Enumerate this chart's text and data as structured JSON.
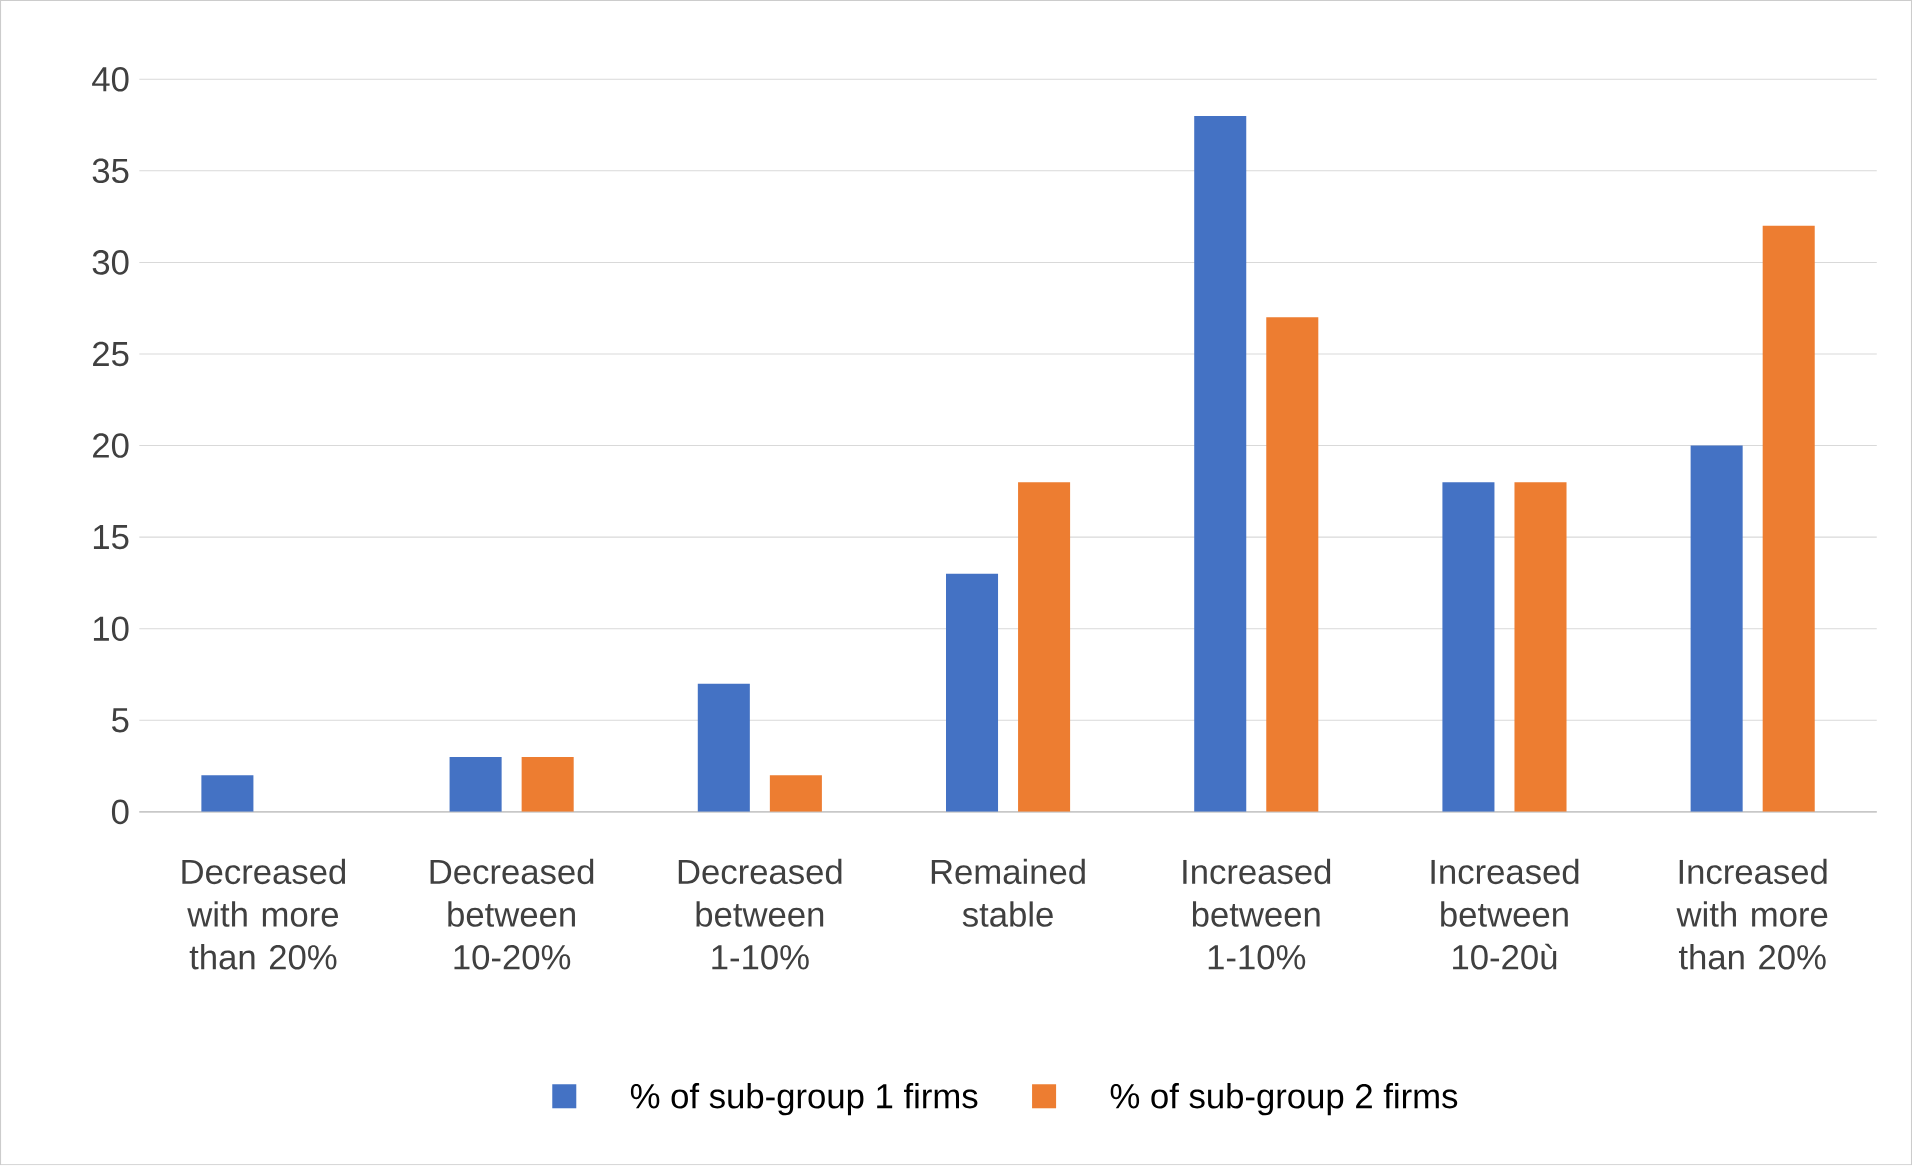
{
  "chart_data": {
    "type": "bar",
    "categories": [
      "Decreased with more than 20%",
      "Decreased between 10-20%",
      "Decreased between 1-10%",
      "Remained stable",
      "Increased between 1-10%",
      "Increased between 10-20ù",
      "Increased with more than 20%"
    ],
    "series": [
      {
        "name": "% of sub-group 1 firms",
        "color": "#4472c4",
        "values": [
          2,
          3,
          7,
          13,
          38,
          18,
          20
        ]
      },
      {
        "name": "% of sub-group 2 firms",
        "color": "#ed7d31",
        "values": [
          0,
          3,
          2,
          18,
          27,
          18,
          32
        ]
      }
    ],
    "ylim": [
      0,
      40
    ],
    "yticks": [
      0,
      5,
      10,
      15,
      20,
      25,
      30,
      35,
      40
    ],
    "grid": "y",
    "legend": "bottom"
  }
}
